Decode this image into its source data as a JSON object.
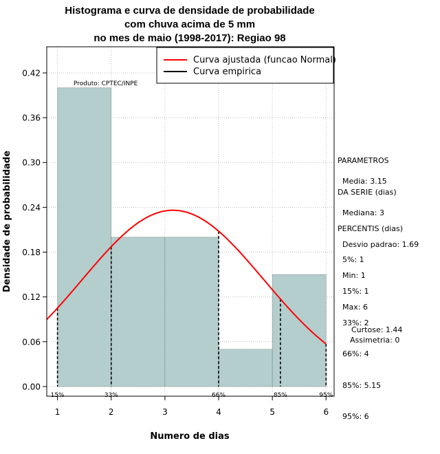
{
  "title": [
    "Histograma e curva de densidade de probabilidade",
    "com chuva acima de 5 mm",
    "no mes de maio (1998-2017): Regiao 98"
  ],
  "chart_data": {
    "type": "bar",
    "xlabel": "Numero de dias",
    "ylabel": "Densidade de probabilidade",
    "xlim": [
      0.8,
      6.15
    ],
    "ylim": [
      -0.013,
      0.455
    ],
    "x_ticks": [
      1,
      2,
      3,
      4,
      5,
      6
    ],
    "y_ticks": [
      0.0,
      0.06,
      0.12,
      0.18,
      0.24,
      0.3,
      0.36,
      0.42
    ],
    "y_tick_labels": [
      "0.00",
      "0.06",
      "0.12",
      "0.18",
      "0.24",
      "0.30",
      "0.36",
      "0.42"
    ],
    "bins": [
      {
        "from": 1,
        "to": 2,
        "density": 0.4
      },
      {
        "from": 2,
        "to": 3,
        "density": 0.2
      },
      {
        "from": 3,
        "to": 4,
        "density": 0.2
      },
      {
        "from": 4,
        "to": 5,
        "density": 0.05
      },
      {
        "from": 5,
        "to": 6,
        "density": 0.15
      }
    ],
    "normal_fit": {
      "mean": 3.15,
      "sd": 1.69
    },
    "percentile_lines": [
      {
        "label": "15%",
        "x": 1
      },
      {
        "label": "33%",
        "x": 2
      },
      {
        "label": "66%",
        "x": 4
      },
      {
        "label": "85%",
        "x": 5.15
      },
      {
        "label": "95%",
        "x": 6
      }
    ],
    "legend": {
      "position": "top-right",
      "entries": [
        {
          "label": "Curva ajustada (funcao Normal)",
          "color": "#ff0000"
        },
        {
          "label": "Curva empirica",
          "color": "#000000"
        }
      ]
    },
    "annotation": "Produto: CPTEC/INPE",
    "colors": {
      "bar": "#b4cdcd",
      "curve": "#ff0000",
      "grid": "#bebebe"
    }
  },
  "stats": {
    "params_title": [
      "PARAMETROS",
      "DA SERIE (dias)"
    ],
    "params": [
      "Media: 3.15",
      "Mediana: 3",
      "Desvio padrao: 1.69",
      "Min: 1",
      "Max: 6"
    ],
    "percentis_title": "PERCENTIS (dias)",
    "percentis": [
      "5%: 1",
      "15%: 1",
      "33%: 2",
      "66%: 4",
      "85%: 5.15",
      "95%: 6"
    ],
    "shape": [
      "Curtose: 1.44",
      "Assimetria: 0"
    ]
  }
}
